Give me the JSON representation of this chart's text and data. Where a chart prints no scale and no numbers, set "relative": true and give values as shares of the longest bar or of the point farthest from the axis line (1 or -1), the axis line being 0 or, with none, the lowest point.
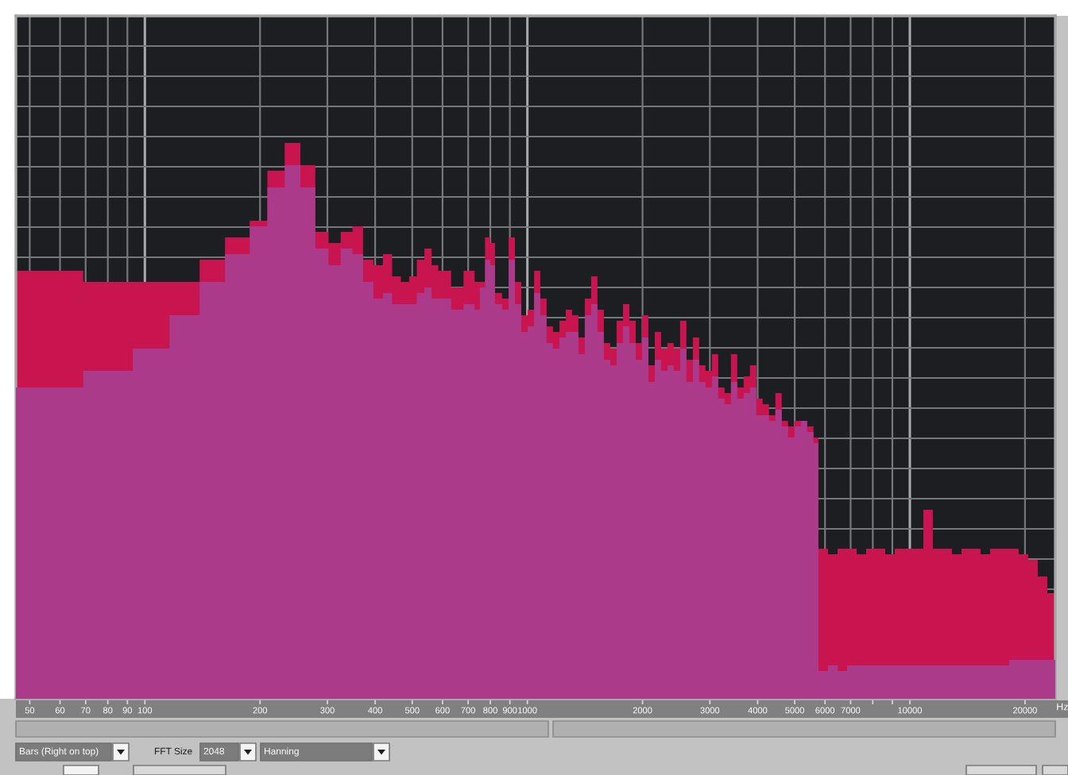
{
  "chart_data": {
    "type": "area",
    "relative": true,
    "log": "x",
    "xlabel": "Hz",
    "x": [
      46,
      69,
      69,
      93,
      93,
      116,
      116,
      139,
      139,
      162,
      162,
      188,
      188,
      209,
      209,
      232,
      232,
      255,
      255,
      279,
      279,
      302,
      302,
      325,
      325,
      349,
      349,
      372,
      372,
      396,
      396,
      419,
      419,
      443,
      443,
      467,
      467,
      491,
      491,
      514,
      514,
      538,
      538,
      562,
      562,
      585,
      585,
      609,
      609,
      632,
      632,
      656,
      656,
      681,
      681,
      704,
      704,
      728,
      728,
      751,
      751,
      775,
      775,
      800,
      800,
      823,
      823,
      859,
      859,
      893,
      893,
      928,
      928,
      964,
      964,
      1002,
      1002,
      1041,
      1041,
      1081,
      1081,
      1123,
      1123,
      1167,
      1167,
      1213,
      1213,
      1260,
      1260,
      1309,
      1309,
      1360,
      1360,
      1413,
      1413,
      1468,
      1468,
      1525,
      1525,
      1585,
      1585,
      1647,
      1647,
      1711,
      1711,
      1778,
      1778,
      1848,
      1848,
      1920,
      1920,
      1994,
      1994,
      2072,
      2072,
      2153,
      2153,
      2237,
      2237,
      2324,
      2324,
      2414,
      2414,
      2508,
      2508,
      2606,
      2606,
      2708,
      2708,
      2813,
      2813,
      2923,
      2923,
      3037,
      3037,
      3155,
      3155,
      3278,
      3278,
      3406,
      3406,
      3538,
      3538,
      3676,
      3676,
      3819,
      3819,
      3968,
      3968,
      4123,
      4123,
      4283,
      4283,
      4450,
      4450,
      4624,
      4624,
      4804,
      4804,
      4991,
      4991,
      5185,
      5185,
      5387,
      5387,
      5597,
      5597,
      5768,
      5768,
      6109,
      6109,
      6470,
      6470,
      6853,
      6853,
      7258,
      7258,
      7686,
      7686,
      8141,
      8141,
      8622,
      8622,
      9131,
      9131,
      9670,
      9670,
      10242,
      10242,
      10847,
      10847,
      11487,
      11487,
      12165,
      12165,
      12883,
      12883,
      13643,
      13643,
      14449,
      14449,
      15301,
      15301,
      16204,
      16204,
      17161,
      17161,
      18174,
      18174,
      19247,
      19247,
      20384,
      20384,
      21600,
      21600,
      22877,
      22877,
      24000
    ],
    "series": [
      {
        "color": "#c8144f",
        "values": [
          0.77,
          0.77,
          0.75,
          0.75,
          0.75,
          0.75,
          0.75,
          0.75,
          0.79,
          0.79,
          0.83,
          0.83,
          0.86,
          0.86,
          0.95,
          0.95,
          1.0,
          1.0,
          0.96,
          0.96,
          0.84,
          0.84,
          0.82,
          0.82,
          0.84,
          0.84,
          0.85,
          0.85,
          0.79,
          0.79,
          0.78,
          0.78,
          0.8,
          0.8,
          0.76,
          0.76,
          0.75,
          0.75,
          0.76,
          0.76,
          0.79,
          0.79,
          0.81,
          0.81,
          0.78,
          0.78,
          0.77,
          0.77,
          0.77,
          0.77,
          0.74,
          0.74,
          0.74,
          0.74,
          0.77,
          0.77,
          0.77,
          0.77,
          0.75,
          0.75,
          0.75,
          0.75,
          0.83,
          0.83,
          0.82,
          0.82,
          0.73,
          0.73,
          0.72,
          0.72,
          0.83,
          0.83,
          0.75,
          0.75,
          0.69,
          0.69,
          0.7,
          0.7,
          0.77,
          0.77,
          0.72,
          0.72,
          0.67,
          0.67,
          0.66,
          0.66,
          0.68,
          0.68,
          0.7,
          0.7,
          0.69,
          0.69,
          0.65,
          0.65,
          0.72,
          0.72,
          0.76,
          0.76,
          0.7,
          0.7,
          0.64,
          0.64,
          0.63,
          0.63,
          0.68,
          0.68,
          0.71,
          0.71,
          0.68,
          0.68,
          0.64,
          0.64,
          0.69,
          0.69,
          0.6,
          0.6,
          0.66,
          0.66,
          0.63,
          0.63,
          0.64,
          0.64,
          0.63,
          0.63,
          0.68,
          0.68,
          0.61,
          0.61,
          0.65,
          0.65,
          0.6,
          0.6,
          0.59,
          0.59,
          0.62,
          0.62,
          0.56,
          0.56,
          0.55,
          0.55,
          0.62,
          0.62,
          0.56,
          0.56,
          0.58,
          0.58,
          0.6,
          0.6,
          0.54,
          0.54,
          0.53,
          0.53,
          0.51,
          0.51,
          0.55,
          0.55,
          0.5,
          0.5,
          0.49,
          0.49,
          0.5,
          0.5,
          0.5,
          0.5,
          0.49,
          0.49,
          0.47,
          0.47,
          0.27,
          0.27,
          0.26,
          0.26,
          0.27,
          0.27,
          0.27,
          0.27,
          0.26,
          0.26,
          0.27,
          0.27,
          0.27,
          0.27,
          0.26,
          0.26,
          0.27,
          0.27,
          0.27,
          0.27,
          0.27,
          0.27,
          0.34,
          0.34,
          0.27,
          0.27,
          0.27,
          0.27,
          0.26,
          0.26,
          0.27,
          0.27,
          0.27,
          0.27,
          0.26,
          0.26,
          0.27,
          0.27,
          0.27,
          0.27,
          0.27,
          0.27,
          0.26,
          0.26,
          0.25,
          0.25,
          0.22,
          0.22,
          0.19,
          0.19
        ]
      },
      {
        "color": "#ac3a8a",
        "values": [
          0.56,
          0.56,
          0.59,
          0.59,
          0.63,
          0.63,
          0.69,
          0.69,
          0.75,
          0.75,
          0.8,
          0.8,
          0.85,
          0.85,
          0.92,
          0.92,
          0.96,
          0.96,
          0.92,
          0.92,
          0.81,
          0.81,
          0.78,
          0.78,
          0.81,
          0.81,
          0.8,
          0.8,
          0.75,
          0.75,
          0.72,
          0.72,
          0.73,
          0.73,
          0.71,
          0.71,
          0.71,
          0.71,
          0.71,
          0.71,
          0.73,
          0.73,
          0.74,
          0.74,
          0.72,
          0.72,
          0.72,
          0.72,
          0.72,
          0.72,
          0.7,
          0.7,
          0.7,
          0.7,
          0.71,
          0.71,
          0.71,
          0.71,
          0.7,
          0.7,
          0.74,
          0.74,
          0.79,
          0.79,
          0.78,
          0.78,
          0.71,
          0.71,
          0.7,
          0.7,
          0.79,
          0.79,
          0.71,
          0.71,
          0.66,
          0.66,
          0.67,
          0.67,
          0.73,
          0.73,
          0.69,
          0.69,
          0.64,
          0.64,
          0.63,
          0.63,
          0.65,
          0.65,
          0.66,
          0.66,
          0.66,
          0.66,
          0.62,
          0.62,
          0.69,
          0.69,
          0.71,
          0.71,
          0.66,
          0.66,
          0.61,
          0.61,
          0.6,
          0.6,
          0.64,
          0.64,
          0.67,
          0.67,
          0.64,
          0.64,
          0.61,
          0.61,
          0.65,
          0.65,
          0.57,
          0.57,
          0.61,
          0.61,
          0.59,
          0.59,
          0.6,
          0.6,
          0.59,
          0.59,
          0.63,
          0.63,
          0.57,
          0.57,
          0.61,
          0.61,
          0.57,
          0.57,
          0.56,
          0.56,
          0.58,
          0.58,
          0.54,
          0.54,
          0.53,
          0.53,
          0.57,
          0.57,
          0.54,
          0.54,
          0.55,
          0.55,
          0.56,
          0.56,
          0.51,
          0.51,
          0.51,
          0.51,
          0.5,
          0.5,
          0.52,
          0.52,
          0.49,
          0.49,
          0.47,
          0.47,
          0.49,
          0.49,
          0.5,
          0.5,
          0.48,
          0.48,
          0.46,
          0.46,
          0.05,
          0.05,
          0.06,
          0.06,
          0.05,
          0.05,
          0.06,
          0.06,
          0.06,
          0.06,
          0.06,
          0.06,
          0.06,
          0.06,
          0.06,
          0.06,
          0.06,
          0.06,
          0.06,
          0.06,
          0.06,
          0.06,
          0.06,
          0.06,
          0.06,
          0.06,
          0.06,
          0.06,
          0.06,
          0.06,
          0.06,
          0.06,
          0.06,
          0.06,
          0.06,
          0.06,
          0.06,
          0.06,
          0.06,
          0.06,
          0.07,
          0.07,
          0.07,
          0.07,
          0.07,
          0.07,
          0.07,
          0.07,
          0.07,
          0.07
        ]
      }
    ],
    "xlim": [
      46,
      24000
    ],
    "xticks": [
      50,
      60,
      70,
      80,
      90,
      100,
      200,
      300,
      400,
      500,
      600,
      700,
      800,
      900,
      1000,
      2000,
      3000,
      4000,
      5000,
      6000,
      7000,
      {
        "value": 8000,
        "label": null
      },
      {
        "value": 9000,
        "label": null
      },
      10000,
      20000
    ],
    "grid": true,
    "tick_labels": "x",
    "annotations": [
      "Bars (Right on top)",
      "FFT Size",
      "2048",
      "Hanning"
    ]
  }
}
